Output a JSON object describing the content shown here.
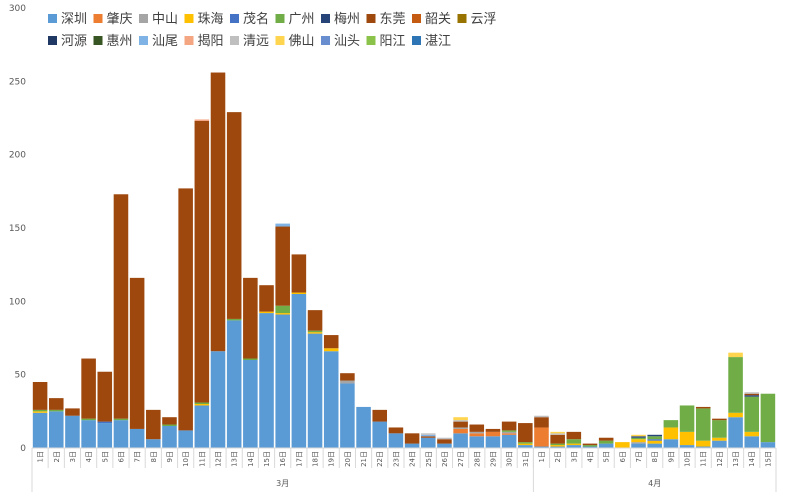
{
  "chart_data": {
    "type": "bar",
    "stacked": true,
    "ylim": [
      0,
      300
    ],
    "yticks": [
      0,
      50,
      100,
      150,
      200,
      250,
      300
    ],
    "grid": false,
    "legend_position": "top-left",
    "groups": [
      {
        "label": "3月",
        "categories": [
          "1日",
          "2日",
          "3日",
          "4日",
          "5日",
          "6日",
          "7日",
          "8日",
          "9日",
          "10日",
          "11日",
          "12日",
          "13日",
          "14日",
          "15日",
          "16日",
          "17日",
          "18日",
          "19日",
          "20日",
          "21日",
          "22日",
          "23日",
          "24日",
          "25日",
          "26日",
          "27日",
          "28日",
          "29日",
          "30日",
          "31日"
        ]
      },
      {
        "label": "4月",
        "categories": [
          "1日",
          "2日",
          "3日",
          "4日",
          "5日",
          "6日",
          "7日",
          "8日",
          "9日",
          "10日",
          "11日",
          "12日",
          "13日",
          "14日",
          "15日"
        ]
      }
    ],
    "series": [
      {
        "name": "深圳",
        "color": "#5b9bd5",
        "values": [
          24,
          25,
          22,
          19,
          17,
          19,
          13,
          6,
          15,
          12,
          29,
          66,
          87,
          60,
          92,
          91,
          105,
          78,
          66,
          44,
          28,
          18,
          10,
          3,
          7,
          3,
          10,
          8,
          8,
          9,
          2,
          1,
          1,
          2,
          1,
          3,
          0,
          3,
          3,
          6,
          2,
          1,
          5,
          21,
          8,
          4
        ]
      },
      {
        "name": "肇庆",
        "color": "#ed7d31",
        "values": [
          0,
          0,
          0,
          0,
          0,
          0,
          0,
          0,
          0,
          0,
          0,
          0,
          0,
          0,
          0,
          0,
          0,
          0,
          0,
          0,
          0,
          0,
          0,
          0,
          0,
          0,
          3,
          2,
          3,
          1,
          0,
          13,
          0,
          0,
          0,
          0,
          0,
          0,
          0,
          0,
          0,
          0,
          0,
          0,
          0,
          0
        ]
      },
      {
        "name": "中山",
        "color": "#a5a5a5",
        "values": [
          0,
          0,
          0,
          0,
          0,
          0,
          0,
          0,
          0,
          0,
          0,
          0,
          0,
          0,
          0,
          0,
          0,
          0,
          0,
          2,
          0,
          0,
          0,
          0,
          0,
          0,
          1,
          1,
          0,
          1,
          0,
          0,
          0,
          0,
          0,
          0,
          0,
          1,
          0,
          0,
          0,
          0,
          0,
          0,
          0,
          0
        ]
      },
      {
        "name": "珠海",
        "color": "#ffc000",
        "values": [
          1,
          0,
          0,
          0,
          0,
          0,
          0,
          0,
          0,
          0,
          1,
          0,
          0,
          0,
          1,
          1,
          1,
          1,
          2,
          0,
          0,
          0,
          0,
          0,
          0,
          0,
          0,
          0,
          0,
          0,
          1,
          0,
          1,
          1,
          0,
          0,
          4,
          2,
          2,
          8,
          9,
          4,
          2,
          3,
          3,
          0
        ]
      },
      {
        "name": "茂名",
        "color": "#4472c4",
        "values": [
          0,
          0,
          0,
          0,
          1,
          0,
          0,
          0,
          0,
          0,
          0,
          0,
          0,
          0,
          0,
          0,
          0,
          0,
          0,
          0,
          0,
          0,
          0,
          0,
          0,
          0,
          0,
          0,
          0,
          0,
          0,
          0,
          0,
          0,
          0,
          0,
          0,
          0,
          1,
          0,
          0,
          0,
          0,
          0,
          0,
          0
        ]
      },
      {
        "name": "广州",
        "color": "#70ad47",
        "values": [
          1,
          1,
          0,
          1,
          0,
          1,
          0,
          0,
          1,
          0,
          1,
          0,
          1,
          1,
          0,
          5,
          0,
          1,
          0,
          0,
          0,
          0,
          0,
          0,
          0,
          0,
          0,
          0,
          0,
          1,
          1,
          0,
          1,
          3,
          1,
          2,
          0,
          1,
          2,
          5,
          18,
          22,
          12,
          38,
          24,
          33
        ]
      },
      {
        "name": "梅州",
        "color": "#264478",
        "values": [
          0,
          0,
          0,
          0,
          0,
          0,
          0,
          0,
          0,
          0,
          0,
          0,
          0,
          0,
          0,
          0,
          0,
          0,
          0,
          0,
          0,
          0,
          0,
          0,
          0,
          0,
          0,
          0,
          0,
          0,
          0,
          0,
          0,
          0,
          0,
          0,
          0,
          1,
          1,
          0,
          0,
          0,
          0,
          0,
          1,
          0
        ]
      },
      {
        "name": "东莞",
        "color": "#9e480e",
        "values": [
          19,
          8,
          5,
          41,
          34,
          153,
          103,
          20,
          5,
          165,
          192,
          190,
          141,
          55,
          18,
          54,
          26,
          14,
          9,
          5,
          0,
          8,
          4,
          7,
          1,
          3,
          4,
          5,
          2,
          6,
          13,
          7,
          6,
          5,
          1,
          2,
          0,
          0,
          0,
          0,
          0,
          1,
          1,
          0,
          1,
          0
        ]
      },
      {
        "name": "韶关",
        "color": "#c55a11",
        "values": [
          0,
          0,
          0,
          0,
          0,
          0,
          0,
          0,
          0,
          0,
          0,
          0,
          0,
          0,
          0,
          0,
          0,
          0,
          0,
          0,
          0,
          0,
          0,
          0,
          0,
          0,
          0,
          0,
          0,
          0,
          0,
          0,
          0,
          0,
          0,
          0,
          0,
          0,
          0,
          0,
          0,
          0,
          0,
          0,
          0,
          0
        ]
      },
      {
        "name": "云浮",
        "color": "#997300",
        "values": [
          0,
          0,
          0,
          0,
          0,
          0,
          0,
          0,
          0,
          0,
          0,
          0,
          0,
          0,
          0,
          0,
          0,
          0,
          0,
          0,
          0,
          0,
          0,
          0,
          0,
          0,
          0,
          0,
          0,
          0,
          0,
          0,
          0,
          0,
          0,
          0,
          0,
          0,
          0,
          0,
          0,
          0,
          0,
          0,
          0,
          0
        ]
      },
      {
        "name": "河源",
        "color": "#203864",
        "values": [
          0,
          0,
          0,
          0,
          0,
          0,
          0,
          0,
          0,
          0,
          0,
          0,
          0,
          0,
          0,
          0,
          0,
          0,
          0,
          0,
          0,
          0,
          0,
          0,
          0,
          0,
          0,
          0,
          0,
          0,
          0,
          0,
          0,
          0,
          0,
          0,
          0,
          0,
          0,
          0,
          0,
          0,
          0,
          0,
          0,
          0
        ]
      },
      {
        "name": "惠州",
        "color": "#375623",
        "values": [
          0,
          0,
          0,
          0,
          0,
          0,
          0,
          0,
          0,
          0,
          0,
          0,
          0,
          0,
          0,
          0,
          0,
          0,
          0,
          0,
          0,
          0,
          0,
          0,
          0,
          0,
          0,
          0,
          0,
          0,
          0,
          0,
          0,
          0,
          0,
          0,
          0,
          0,
          0,
          0,
          0,
          0,
          0,
          0,
          0,
          0
        ]
      },
      {
        "name": "汕尾",
        "color": "#7fb2e5",
        "values": [
          0,
          0,
          0,
          0,
          0,
          0,
          0,
          0,
          0,
          0,
          0,
          0,
          0,
          0,
          0,
          2,
          0,
          0,
          0,
          0,
          0,
          0,
          0,
          0,
          1,
          0,
          0,
          0,
          0,
          0,
          0,
          0,
          0,
          0,
          0,
          0,
          0,
          0,
          0,
          0,
          0,
          0,
          0,
          0,
          0,
          0
        ]
      },
      {
        "name": "揭阳",
        "color": "#f4a582",
        "values": [
          0,
          0,
          0,
          0,
          0,
          0,
          0,
          0,
          0,
          0,
          1,
          0,
          0,
          0,
          0,
          0,
          0,
          0,
          0,
          0,
          0,
          0,
          0,
          0,
          0,
          0,
          0,
          0,
          0,
          0,
          0,
          0,
          0,
          0,
          0,
          0,
          0,
          0,
          0,
          0,
          0,
          0,
          0,
          0,
          0,
          0
        ]
      },
      {
        "name": "清远",
        "color": "#bfbfbf",
        "values": [
          0,
          0,
          0,
          0,
          0,
          0,
          0,
          0,
          0,
          0,
          0,
          0,
          0,
          0,
          0,
          0,
          0,
          0,
          0,
          0,
          0,
          0,
          0,
          0,
          1,
          1,
          1,
          0,
          0,
          0,
          0,
          1,
          1,
          0,
          0,
          0,
          0,
          0,
          0,
          0,
          0,
          0,
          0,
          0,
          1,
          0
        ]
      },
      {
        "name": "佛山",
        "color": "#ffd54f",
        "values": [
          0,
          0,
          0,
          0,
          0,
          0,
          0,
          0,
          0,
          0,
          0,
          0,
          0,
          0,
          0,
          0,
          0,
          0,
          0,
          0,
          0,
          0,
          0,
          0,
          0,
          0,
          2,
          0,
          0,
          0,
          0,
          0,
          1,
          0,
          0,
          0,
          0,
          1,
          0,
          0,
          0,
          0,
          0,
          3,
          0,
          0
        ]
      },
      {
        "name": "汕头",
        "color": "#698ed0",
        "values": [
          0,
          0,
          0,
          0,
          0,
          0,
          0,
          0,
          0,
          0,
          0,
          0,
          0,
          0,
          0,
          0,
          0,
          0,
          0,
          0,
          0,
          0,
          0,
          0,
          0,
          0,
          0,
          0,
          0,
          0,
          0,
          0,
          0,
          0,
          0,
          0,
          0,
          0,
          0,
          0,
          0,
          0,
          0,
          0,
          0,
          0
        ]
      },
      {
        "name": "阳江",
        "color": "#8bc34a",
        "values": [
          0,
          0,
          0,
          0,
          0,
          0,
          0,
          0,
          0,
          0,
          0,
          0,
          0,
          0,
          0,
          0,
          0,
          0,
          0,
          0,
          0,
          0,
          0,
          0,
          0,
          0,
          0,
          0,
          0,
          0,
          0,
          0,
          0,
          0,
          0,
          0,
          0,
          0,
          0,
          0,
          0,
          0,
          0,
          0,
          0,
          0
        ]
      },
      {
        "name": "湛江",
        "color": "#2e75b6",
        "values": [
          0,
          0,
          0,
          0,
          0,
          0,
          0,
          0,
          0,
          0,
          0,
          0,
          0,
          0,
          0,
          0,
          0,
          0,
          0,
          0,
          0,
          0,
          0,
          0,
          0,
          0,
          0,
          0,
          0,
          0,
          0,
          0,
          0,
          0,
          0,
          0,
          0,
          0,
          0,
          0,
          0,
          0,
          0,
          0,
          0,
          0
        ]
      }
    ]
  }
}
